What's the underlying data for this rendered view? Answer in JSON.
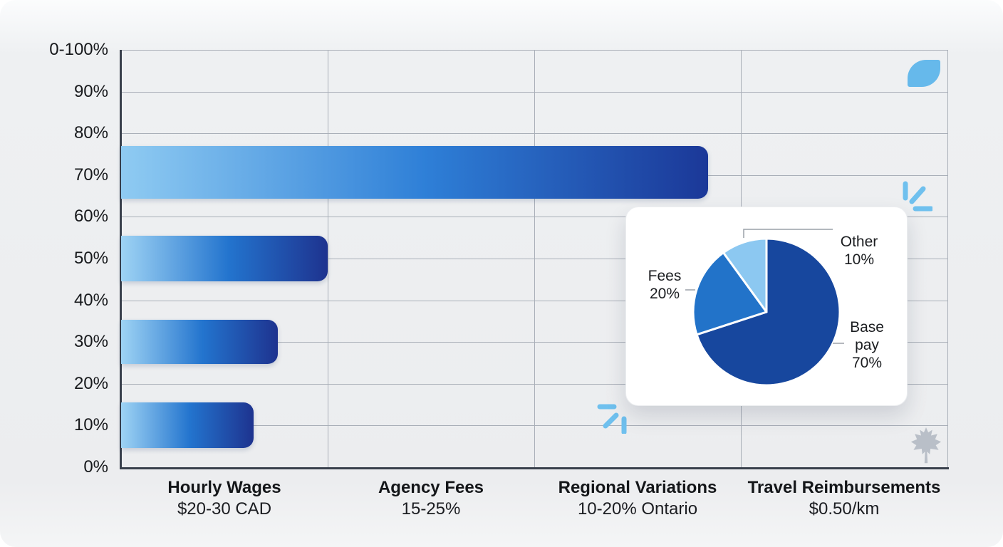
{
  "chart_data": [
    {
      "type": "bar",
      "orientation": "horizontal",
      "title": "",
      "grid": true,
      "y_axis": {
        "tick_labels": [
          "0-100%",
          "90%",
          "80%",
          "70%",
          "60%",
          "50%",
          "40%",
          "30%",
          "20%",
          "10%",
          "0%"
        ],
        "min": 0,
        "max": 100,
        "unit": "%"
      },
      "categories": [
        {
          "title": "Hourly Wages",
          "subtitle": "$20-30 CAD"
        },
        {
          "title": "Agency Fees",
          "subtitle": "15-25%"
        },
        {
          "title": "Regional Variations",
          "subtitle": "10-20% Ontario"
        },
        {
          "title": "Travel Reimbursements",
          "subtitle": "$0.50/km"
        }
      ],
      "bars": [
        {
          "row_center_pct": 70,
          "length_pct_of_axis": 71,
          "gradient": [
            "#8FCBF2",
            "#2E7FD7",
            "#1B3898"
          ]
        },
        {
          "row_center_pct": 50,
          "length_pct_of_axis": 25,
          "gradient": [
            "#9ED3F4",
            "#2374CE",
            "#1E338F"
          ]
        },
        {
          "row_center_pct": 30,
          "length_pct_of_axis": 19,
          "gradient": [
            "#9ED3F4",
            "#2374CE",
            "#1E338F"
          ]
        },
        {
          "row_center_pct": 10,
          "length_pct_of_axis": 16,
          "gradient": [
            "#9ED3F4",
            "#2374CE",
            "#1E338F"
          ]
        }
      ]
    },
    {
      "type": "pie",
      "title": "",
      "start_angle_deg": 0,
      "direction": "clockwise",
      "slices": [
        {
          "label": "Base pay",
          "value": 70,
          "value_label": "70%",
          "color": "#17479E"
        },
        {
          "label": "Fees",
          "value": 20,
          "value_label": "20%",
          "color": "#2273C9"
        },
        {
          "label": "Other",
          "value": 10,
          "value_label": "10%",
          "color": "#8CC8F1"
        }
      ]
    }
  ],
  "colors": {
    "axis": "#39404C",
    "grid": "#A9AFB8",
    "text": "#17191C",
    "card_background": "#FFFFFF",
    "leader_line": "#9AA1A9",
    "accent_light_blue": "#6FC0EE",
    "maple_grey": "#B9BFC8",
    "background": "#EDEFF1"
  },
  "decorations": [
    {
      "name": "leaf-icon",
      "color": "#66B9EB"
    },
    {
      "name": "burst-icon-right",
      "color": "#6FC0EE"
    },
    {
      "name": "burst-icon-left",
      "color": "#6FC0EE"
    },
    {
      "name": "maple-leaf-icon",
      "color": "#B9BFC8"
    }
  ]
}
